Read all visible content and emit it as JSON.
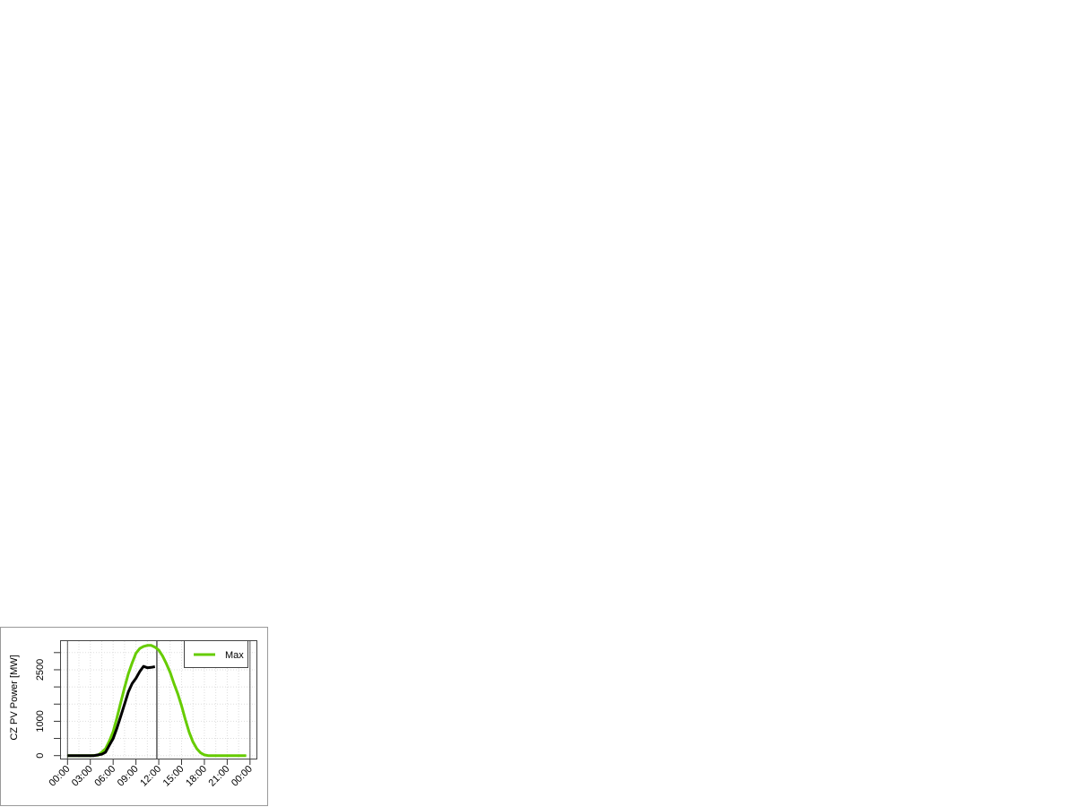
{
  "chart_data": {
    "type": "line",
    "title": "",
    "xlabel": "",
    "ylabel": "CZ PV Power [MW]",
    "xlim_hours": [
      0,
      24
    ],
    "ylim": [
      0,
      3300
    ],
    "x_ticks": [
      "00:00",
      "03:00",
      "06:00",
      "09:00",
      "12:00",
      "15:00",
      "18:00",
      "21:00",
      "00:00"
    ],
    "y_ticks": [
      0,
      500,
      1000,
      1500,
      2000,
      2500,
      3000
    ],
    "y_tick_labels": [
      "0",
      "1000",
      "2500"
    ],
    "y_tick_label_values": [
      0,
      1000,
      2500
    ],
    "grid": true,
    "legend": {
      "position": "top-right",
      "entries": [
        "Max"
      ]
    },
    "current_time_marker": "11:45",
    "series": [
      {
        "name": "Max",
        "color": "#66cc00",
        "x": [
          "00:00",
          "01:00",
          "02:00",
          "03:00",
          "04:00",
          "04:30",
          "05:00",
          "05:30",
          "06:00",
          "06:30",
          "07:00",
          "07:30",
          "08:00",
          "08:30",
          "09:00",
          "09:30",
          "10:00",
          "10:30",
          "11:00",
          "11:30",
          "12:00",
          "12:30",
          "13:00",
          "13:30",
          "14:00",
          "14:30",
          "15:00",
          "15:30",
          "16:00",
          "16:30",
          "17:00",
          "17:30",
          "18:00",
          "18:30",
          "19:00",
          "20:00",
          "21:00",
          "22:00",
          "23:00",
          "23:30"
        ],
        "values": [
          0,
          0,
          0,
          0,
          10,
          100,
          200,
          420,
          700,
          1100,
          1550,
          1980,
          2380,
          2700,
          2980,
          3120,
          3180,
          3210,
          3210,
          3160,
          3070,
          2900,
          2680,
          2420,
          2100,
          1800,
          1450,
          1050,
          680,
          400,
          200,
          80,
          20,
          0,
          0,
          0,
          0,
          0,
          0,
          0
        ]
      },
      {
        "color": "#000000",
        "x": [
          "00:00",
          "01:00",
          "02:00",
          "03:00",
          "03:30",
          "04:00",
          "04:30",
          "05:00",
          "05:30",
          "06:00",
          "06:30",
          "07:00",
          "07:30",
          "08:00",
          "08:30",
          "09:00",
          "09:30",
          "10:00",
          "10:30",
          "11:00",
          "11:30"
        ],
        "values": [
          0,
          0,
          0,
          0,
          0,
          20,
          40,
          100,
          300,
          500,
          800,
          1150,
          1500,
          1850,
          2100,
          2250,
          2450,
          2600,
          2560,
          2570,
          2590
        ]
      }
    ]
  }
}
